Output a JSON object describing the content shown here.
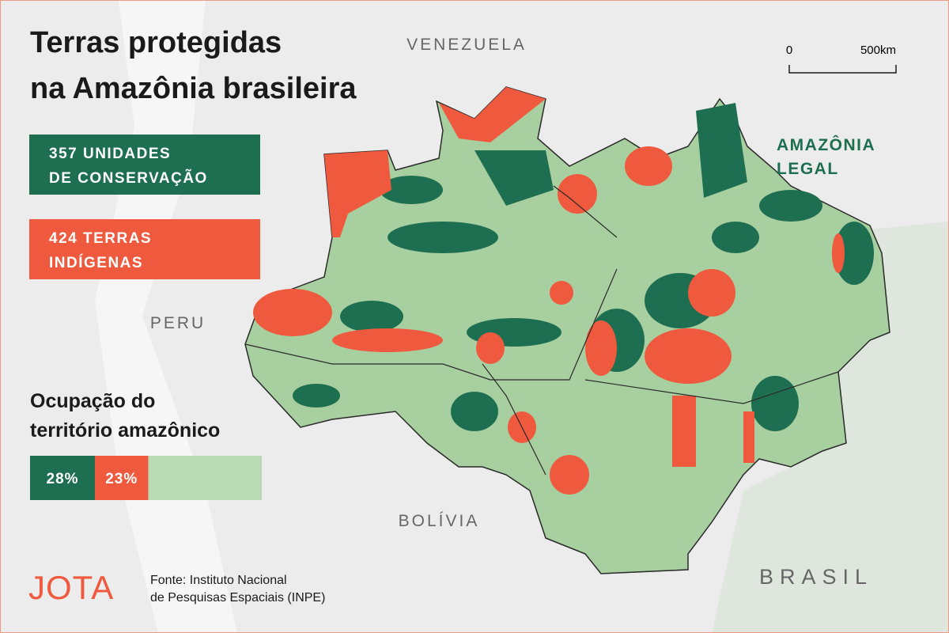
{
  "header": {
    "title": [
      "Terras protegidas",
      "na Amazônia brasileira"
    ]
  },
  "legend": [
    {
      "lines": [
        "357 UNIDADES",
        "DE CONSERVAÇÃO"
      ],
      "color": "#1e6e52"
    },
    {
      "lines": [
        "424 TERRAS",
        "INDÍGENAS"
      ],
      "color": "#ef5a3f"
    }
  ],
  "map_labels": {
    "venezuela": "VENEZUELA",
    "peru": "PERU",
    "bolivia": "BOLÍVIA",
    "brasil": "BRASIL",
    "region": [
      "AMAZÔNIA",
      "LEGAL"
    ]
  },
  "scale": {
    "start": "0",
    "end": "500km"
  },
  "occupation": {
    "title": [
      "Ocupação do",
      "território amazônico"
    ],
    "values": [
      28,
      23
    ],
    "value_labels": [
      "28%",
      "23%"
    ],
    "colors": [
      "#1e6e52",
      "#ef5a3f"
    ],
    "rest_color": "#b9dbb4"
  },
  "footer": {
    "logo": "JOTA",
    "source": [
      "Fonte: Instituto Nacional",
      "de Pesquisas Espaciais (INPE)"
    ]
  }
}
